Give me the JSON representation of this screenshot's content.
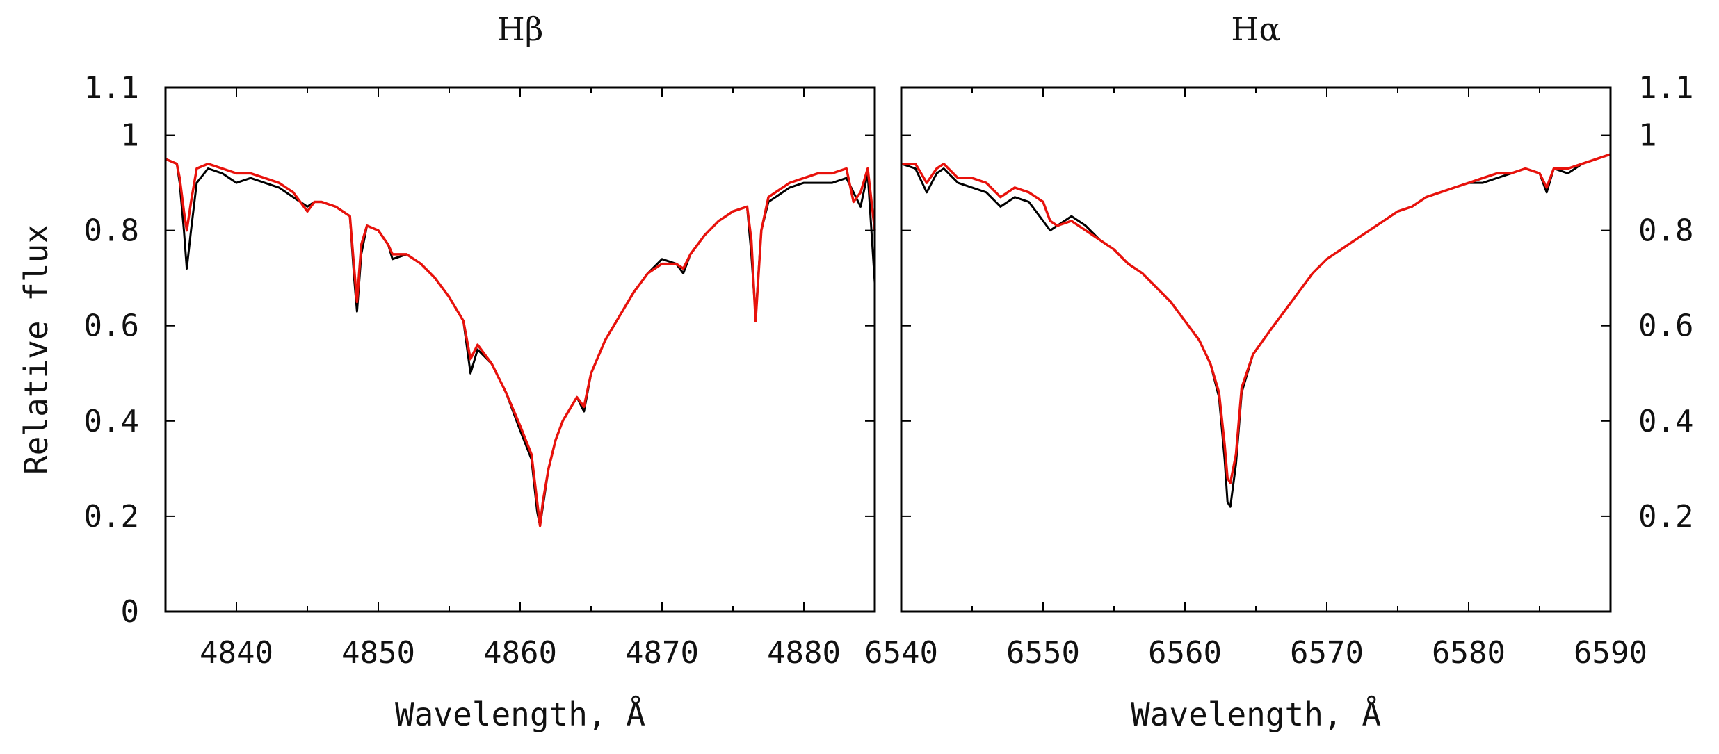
{
  "figure": {
    "ylabel": "Relative flux",
    "xlabel": "Wavelength, Å",
    "colors": {
      "observed": "#000000",
      "model": "#e8120c"
    }
  },
  "chart_data": [
    {
      "type": "line",
      "title": "Hβ",
      "xlabel": "Wavelength, Å",
      "ylabel": "Relative flux",
      "xlim": [
        4835,
        4885
      ],
      "ylim": [
        0,
        1.1
      ],
      "xticks": [
        4840,
        4850,
        4860,
        4870,
        4880
      ],
      "xtick_labels": [
        "4840",
        "4850",
        "4860",
        "4870",
        "4880"
      ],
      "yticks": [
        0,
        0.2,
        0.4,
        0.6,
        0.8,
        1,
        1.1
      ],
      "ytick_labels": [
        "0",
        "0.2",
        "0.4",
        "0.6",
        "0.8",
        "1",
        "1.1"
      ],
      "yaxis_side": "left",
      "grid": false,
      "series": [
        {
          "color": "#000000",
          "x": [
            4835,
            4835.8,
            4836.0,
            4836.3,
            4836.5,
            4836.8,
            4837.2,
            4838,
            4839,
            4840,
            4841,
            4842,
            4843,
            4844,
            4845,
            4845.5,
            4846,
            4847,
            4848,
            4848.3,
            4848.5,
            4848.8,
            4849.2,
            4850,
            4850.7,
            4851,
            4852,
            4853,
            4854,
            4855,
            4856,
            4856.5,
            4857,
            4858,
            4859,
            4860,
            4860.8,
            4861.2,
            4861.4,
            4861.6,
            4862,
            4862.5,
            4863,
            4864,
            4864.5,
            4865,
            4866,
            4867,
            4868,
            4869,
            4870,
            4871,
            4871.5,
            4872,
            4873,
            4874,
            4875,
            4876,
            4876.3,
            4876.6,
            4877,
            4877.5,
            4878,
            4879,
            4880,
            4881,
            4882,
            4883,
            4883.5,
            4884,
            4884.5,
            4885
          ],
          "y": [
            0.95,
            0.94,
            0.9,
            0.8,
            0.72,
            0.8,
            0.9,
            0.93,
            0.92,
            0.9,
            0.91,
            0.9,
            0.89,
            0.87,
            0.85,
            0.86,
            0.86,
            0.85,
            0.83,
            0.7,
            0.63,
            0.75,
            0.81,
            0.8,
            0.77,
            0.74,
            0.75,
            0.73,
            0.7,
            0.66,
            0.61,
            0.5,
            0.55,
            0.52,
            0.46,
            0.38,
            0.32,
            0.21,
            0.18,
            0.22,
            0.3,
            0.36,
            0.4,
            0.45,
            0.42,
            0.5,
            0.57,
            0.62,
            0.67,
            0.71,
            0.74,
            0.73,
            0.71,
            0.75,
            0.79,
            0.82,
            0.84,
            0.85,
            0.75,
            0.62,
            0.8,
            0.86,
            0.87,
            0.89,
            0.9,
            0.9,
            0.9,
            0.91,
            0.88,
            0.85,
            0.92,
            0.69
          ]
        },
        {
          "color": "#e8120c",
          "x": [
            4835,
            4835.8,
            4836.0,
            4836.3,
            4836.5,
            4836.8,
            4837.2,
            4838,
            4839,
            4840,
            4841,
            4842,
            4843,
            4844,
            4845,
            4845.5,
            4846,
            4847,
            4848,
            4848.3,
            4848.5,
            4848.8,
            4849.2,
            4850,
            4850.7,
            4851,
            4852,
            4853,
            4854,
            4855,
            4856,
            4856.5,
            4857,
            4858,
            4859,
            4860,
            4860.8,
            4861.2,
            4861.4,
            4861.6,
            4862,
            4862.5,
            4863,
            4864,
            4864.5,
            4865,
            4866,
            4867,
            4868,
            4869,
            4870,
            4871,
            4871.5,
            4872,
            4873,
            4874,
            4875,
            4876,
            4876.3,
            4876.6,
            4877,
            4877.5,
            4878,
            4879,
            4880,
            4881,
            4882,
            4883,
            4883.5,
            4884,
            4884.5,
            4885
          ],
          "y": [
            0.95,
            0.94,
            0.91,
            0.84,
            0.8,
            0.86,
            0.93,
            0.94,
            0.93,
            0.92,
            0.92,
            0.91,
            0.9,
            0.88,
            0.84,
            0.86,
            0.86,
            0.85,
            0.83,
            0.72,
            0.65,
            0.77,
            0.81,
            0.8,
            0.77,
            0.75,
            0.75,
            0.73,
            0.7,
            0.66,
            0.61,
            0.53,
            0.56,
            0.52,
            0.46,
            0.39,
            0.33,
            0.23,
            0.18,
            0.23,
            0.3,
            0.36,
            0.4,
            0.45,
            0.43,
            0.5,
            0.57,
            0.62,
            0.67,
            0.71,
            0.73,
            0.73,
            0.72,
            0.75,
            0.79,
            0.82,
            0.84,
            0.85,
            0.78,
            0.61,
            0.8,
            0.87,
            0.88,
            0.9,
            0.91,
            0.92,
            0.92,
            0.93,
            0.86,
            0.88,
            0.93,
            0.8
          ]
        }
      ]
    },
    {
      "type": "line",
      "title": "Hα",
      "xlabel": "Wavelength, Å",
      "ylabel": "",
      "xlim": [
        6540,
        6590
      ],
      "ylim": [
        0,
        1.1
      ],
      "xticks": [
        6540,
        6550,
        6560,
        6570,
        6580,
        6590
      ],
      "xtick_labels": [
        "6540",
        "6550",
        "6560",
        "6570",
        "6580",
        "6590"
      ],
      "yticks": [
        0.2,
        0.4,
        0.6,
        0.8,
        1,
        1.1
      ],
      "ytick_labels": [
        "0.2",
        "0.4",
        "0.6",
        "0.8",
        "1",
        "1.1"
      ],
      "yaxis_side": "right",
      "grid": false,
      "series": [
        {
          "color": "#000000",
          "x": [
            6540,
            6541,
            6541.8,
            6542.5,
            6543,
            6544,
            6545,
            6546,
            6547,
            6548,
            6549,
            6550,
            6550.5,
            6551,
            6552,
            6553,
            6554,
            6555,
            6556,
            6557,
            6558,
            6559,
            6560,
            6561,
            6561.8,
            6562.4,
            6562.8,
            6563.0,
            6563.2,
            6563.6,
            6564,
            6564.8,
            6566,
            6567,
            6568,
            6569,
            6570,
            6571,
            6572,
            6573,
            6574,
            6575,
            6576,
            6577,
            6578,
            6579,
            6580,
            6581,
            6582,
            6583,
            6584,
            6585,
            6585.5,
            6586,
            6587,
            6588,
            6589,
            6590
          ],
          "y": [
            0.94,
            0.93,
            0.88,
            0.92,
            0.93,
            0.9,
            0.89,
            0.88,
            0.85,
            0.87,
            0.86,
            0.82,
            0.8,
            0.81,
            0.83,
            0.81,
            0.78,
            0.76,
            0.73,
            0.71,
            0.68,
            0.65,
            0.61,
            0.57,
            0.52,
            0.45,
            0.32,
            0.23,
            0.22,
            0.31,
            0.46,
            0.54,
            0.59,
            0.63,
            0.67,
            0.71,
            0.74,
            0.76,
            0.78,
            0.8,
            0.82,
            0.84,
            0.85,
            0.87,
            0.88,
            0.89,
            0.9,
            0.9,
            0.91,
            0.92,
            0.93,
            0.92,
            0.88,
            0.93,
            0.92,
            0.94,
            0.95,
            0.96
          ]
        },
        {
          "color": "#e8120c",
          "x": [
            6540,
            6541,
            6541.8,
            6542.5,
            6543,
            6544,
            6545,
            6546,
            6547,
            6548,
            6549,
            6550,
            6550.5,
            6551,
            6552,
            6553,
            6554,
            6555,
            6556,
            6557,
            6558,
            6559,
            6560,
            6561,
            6561.8,
            6562.4,
            6562.8,
            6563.0,
            6563.2,
            6563.6,
            6564,
            6564.8,
            6566,
            6567,
            6568,
            6569,
            6570,
            6571,
            6572,
            6573,
            6574,
            6575,
            6576,
            6577,
            6578,
            6579,
            6580,
            6581,
            6582,
            6583,
            6584,
            6585,
            6585.5,
            6586,
            6587,
            6588,
            6589,
            6590
          ],
          "y": [
            0.94,
            0.94,
            0.9,
            0.93,
            0.94,
            0.91,
            0.91,
            0.9,
            0.87,
            0.89,
            0.88,
            0.86,
            0.82,
            0.81,
            0.82,
            0.8,
            0.78,
            0.76,
            0.73,
            0.71,
            0.68,
            0.65,
            0.61,
            0.57,
            0.52,
            0.46,
            0.35,
            0.28,
            0.27,
            0.33,
            0.47,
            0.54,
            0.59,
            0.63,
            0.67,
            0.71,
            0.74,
            0.76,
            0.78,
            0.8,
            0.82,
            0.84,
            0.85,
            0.87,
            0.88,
            0.89,
            0.9,
            0.91,
            0.92,
            0.92,
            0.93,
            0.92,
            0.89,
            0.93,
            0.93,
            0.94,
            0.95,
            0.96
          ]
        }
      ]
    }
  ]
}
